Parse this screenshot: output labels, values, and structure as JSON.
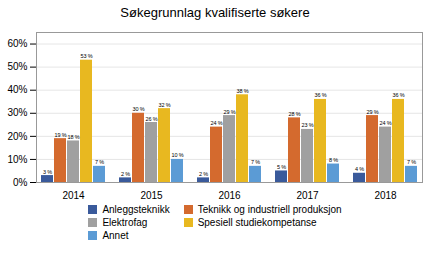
{
  "chart_data": {
    "type": "bar",
    "title": "Søkegrunnlag kvalifiserte søkere",
    "categories": [
      "2014",
      "2015",
      "2016",
      "2017",
      "2018"
    ],
    "series": [
      {
        "name": "Anleggsteknikk",
        "color": "#3a5a9b",
        "values": [
          3,
          2,
          2,
          5,
          4
        ],
        "value_labels": [
          "3 %",
          "2 %",
          "2 %",
          "5 %",
          "4 %"
        ]
      },
      {
        "name": "Teknikk og industriell produksjon",
        "color": "#d46a2e",
        "values": [
          19,
          30,
          24,
          28,
          29
        ],
        "value_labels": [
          "19 %",
          "30 %",
          "24 %",
          "28 %",
          "29 %"
        ]
      },
      {
        "name": "Elektrofag",
        "color": "#a0a0a0",
        "values": [
          18,
          26,
          29,
          23,
          24
        ],
        "value_labels": [
          "18 %",
          "26 %",
          "29 %",
          "23 %",
          "24 %"
        ]
      },
      {
        "name": "Spesiell studiekompetanse",
        "color": "#e8b820",
        "values": [
          53,
          32,
          38,
          36,
          36
        ],
        "value_labels": [
          "53 %",
          "32 %",
          "38 %",
          "36 %",
          "36 %"
        ]
      },
      {
        "name": "Annet",
        "color": "#5b9bd5",
        "values": [
          7,
          10,
          7,
          8,
          7
        ],
        "value_labels": [
          "7 %",
          "10 %",
          "7 %",
          "8 %",
          "7 %"
        ]
      }
    ],
    "ylim": [
      0,
      65
    ],
    "yticks": [
      {
        "value": 0,
        "label": "0%"
      },
      {
        "value": 10,
        "label": "10%"
      },
      {
        "value": 20,
        "label": "20%"
      },
      {
        "value": 30,
        "label": "30%"
      },
      {
        "value": 40,
        "label": "40%"
      },
      {
        "value": 50,
        "label": "50%"
      },
      {
        "value": 60,
        "label": "60%"
      }
    ],
    "grid": true,
    "legend": "bottom",
    "data_labels": true
  }
}
